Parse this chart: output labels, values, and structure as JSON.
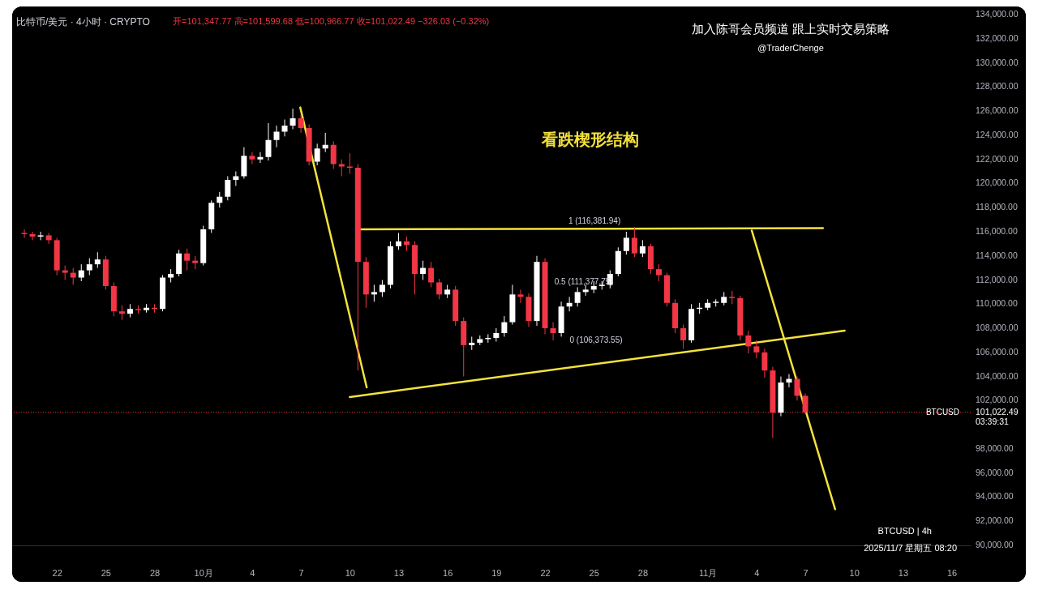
{
  "chart_data": {
    "type": "candlestick",
    "title": "比特币/美元 · 4小时 · CRYPTO",
    "subtitle": "开=101,347.77 高=101,599.68 低=100,966.77 收=101,022.49 −326.03 (−0.32%)",
    "x": [
      "2025-09-20T00:00",
      "2025-09-20T12:00",
      "2025-09-21T00:00",
      "2025-09-21T12:00",
      "2025-09-22T00:00",
      "2025-09-22T12:00",
      "2025-09-23T00:00",
      "2025-09-23T12:00",
      "2025-09-24T00:00",
      "2025-09-24T12:00",
      "2025-09-25T00:00",
      "2025-09-25T12:00",
      "2025-09-26T00:00",
      "2025-09-26T12:00",
      "2025-09-27T00:00",
      "2025-09-27T12:00",
      "2025-09-28T00:00",
      "2025-09-28T12:00",
      "2025-09-29T00:00",
      "2025-09-29T12:00",
      "2025-09-30T00:00",
      "2025-09-30T12:00",
      "2025-10-01T00:00",
      "2025-10-01T12:00",
      "2025-10-02T00:00",
      "2025-10-02T12:00",
      "2025-10-03T00:00",
      "2025-10-03T12:00",
      "2025-10-04T00:00",
      "2025-10-04T12:00",
      "2025-10-05T00:00",
      "2025-10-05T12:00",
      "2025-10-06T00:00",
      "2025-10-06T12:00",
      "2025-10-07T00:00",
      "2025-10-07T12:00",
      "2025-10-08T00:00",
      "2025-10-08T12:00",
      "2025-10-09T00:00",
      "2025-10-09T12:00",
      "2025-10-10T00:00",
      "2025-10-10T12:00",
      "2025-10-11T00:00",
      "2025-10-11T12:00",
      "2025-10-12T00:00",
      "2025-10-12T12:00",
      "2025-10-13T00:00",
      "2025-10-13T12:00",
      "2025-10-14T00:00",
      "2025-10-14T12:00",
      "2025-10-15T00:00",
      "2025-10-15T12:00",
      "2025-10-16T00:00",
      "2025-10-16T12:00",
      "2025-10-17T00:00",
      "2025-10-17T12:00",
      "2025-10-18T00:00",
      "2025-10-18T12:00",
      "2025-10-19T00:00",
      "2025-10-19T12:00",
      "2025-10-20T00:00",
      "2025-10-20T12:00",
      "2025-10-21T00:00",
      "2025-10-21T12:00",
      "2025-10-22T00:00",
      "2025-10-22T12:00",
      "2025-10-23T00:00",
      "2025-10-23T12:00",
      "2025-10-24T00:00",
      "2025-10-24T12:00",
      "2025-10-25T00:00",
      "2025-10-25T12:00",
      "2025-10-26T00:00",
      "2025-10-26T12:00",
      "2025-10-27T00:00",
      "2025-10-27T12:00",
      "2025-10-28T00:00",
      "2025-10-28T12:00",
      "2025-10-29T00:00",
      "2025-10-29T12:00",
      "2025-10-30T00:00",
      "2025-10-30T12:00",
      "2025-10-31T00:00",
      "2025-10-31T12:00",
      "2025-11-01T00:00",
      "2025-11-01T12:00",
      "2025-11-02T00:00",
      "2025-11-02T12:00",
      "2025-11-03T00:00",
      "2025-11-03T12:00",
      "2025-11-04T00:00",
      "2025-11-04T12:00",
      "2025-11-05T00:00",
      "2025-11-05T12:00",
      "2025-11-06T00:00",
      "2025-11-06T12:00",
      "2025-11-07T00:00"
    ],
    "ohlc": [
      [
        115900,
        116200,
        115500,
        115800
      ],
      [
        115800,
        116000,
        115300,
        115600
      ],
      [
        115600,
        116000,
        115300,
        115700
      ],
      [
        115700,
        115900,
        115000,
        115300
      ],
      [
        115300,
        115500,
        112400,
        112800
      ],
      [
        112800,
        113200,
        112000,
        112600
      ],
      [
        112600,
        113000,
        111600,
        112200
      ],
      [
        112200,
        113300,
        111900,
        112800
      ],
      [
        112800,
        113800,
        112400,
        113300
      ],
      [
        113300,
        114300,
        113000,
        113700
      ],
      [
        113700,
        114000,
        111200,
        111500
      ],
      [
        111500,
        111800,
        109000,
        109400
      ],
      [
        109400,
        109900,
        108700,
        109200
      ],
      [
        109200,
        110000,
        108900,
        109600
      ],
      [
        109600,
        109900,
        109200,
        109500
      ],
      [
        109500,
        110000,
        109300,
        109700
      ],
      [
        109700,
        110000,
        109300,
        109600
      ],
      [
        109600,
        112400,
        109400,
        112200
      ],
      [
        112200,
        112900,
        111800,
        112500
      ],
      [
        112500,
        114500,
        112300,
        114200
      ],
      [
        114200,
        114600,
        112800,
        113600
      ],
      [
        113600,
        114000,
        112900,
        113400
      ],
      [
        113400,
        116500,
        113200,
        116200
      ],
      [
        116200,
        118600,
        115900,
        118400
      ],
      [
        118400,
        119300,
        118000,
        118900
      ],
      [
        118900,
        120600,
        118600,
        120300
      ],
      [
        120300,
        121000,
        119800,
        120600
      ],
      [
        120600,
        123000,
        120400,
        122300
      ],
      [
        122300,
        122600,
        121600,
        122000
      ],
      [
        122000,
        122600,
        121700,
        122200
      ],
      [
        122200,
        125000,
        121900,
        123600
      ],
      [
        123600,
        124800,
        123000,
        124300
      ],
      [
        124300,
        125300,
        123900,
        124800
      ],
      [
        124800,
        126200,
        124500,
        125400
      ],
      [
        125400,
        125700,
        124200,
        124600
      ],
      [
        124600,
        124900,
        121500,
        121800
      ],
      [
        121800,
        123300,
        121500,
        122900
      ],
      [
        122900,
        124200,
        122600,
        123200
      ],
      [
        123200,
        123500,
        121200,
        121600
      ],
      [
        121600,
        122000,
        120600,
        121400
      ],
      [
        121400,
        122500,
        120800,
        121300
      ],
      [
        121300,
        121600,
        104500,
        113500
      ],
      [
        113500,
        113900,
        109700,
        110800
      ],
      [
        110800,
        111600,
        110200,
        111000
      ],
      [
        111000,
        112000,
        110600,
        111600
      ],
      [
        111600,
        115200,
        111300,
        114800
      ],
      [
        114800,
        115900,
        114500,
        115200
      ],
      [
        115200,
        115600,
        114400,
        114900
      ],
      [
        114900,
        115200,
        110800,
        112500
      ],
      [
        112500,
        113600,
        112000,
        113000
      ],
      [
        113000,
        113500,
        111400,
        111800
      ],
      [
        111800,
        112100,
        110400,
        110800
      ],
      [
        110800,
        111600,
        110500,
        111200
      ],
      [
        111200,
        111500,
        108200,
        108600
      ],
      [
        108600,
        108900,
        104000,
        106600
      ],
      [
        106600,
        107300,
        106200,
        106800
      ],
      [
        106800,
        107400,
        106600,
        107100
      ],
      [
        107100,
        107500,
        106800,
        107200
      ],
      [
        107200,
        108000,
        106900,
        107600
      ],
      [
        107600,
        109000,
        107300,
        108500
      ],
      [
        108500,
        111600,
        108300,
        110800
      ],
      [
        110800,
        111200,
        110100,
        110600
      ],
      [
        110600,
        110900,
        108100,
        108600
      ],
      [
        108600,
        114000,
        108200,
        113500
      ],
      [
        113500,
        113800,
        107500,
        108000
      ],
      [
        108000,
        108500,
        107000,
        107600
      ],
      [
        107600,
        110200,
        107300,
        109800
      ],
      [
        109800,
        110600,
        109400,
        110100
      ],
      [
        110100,
        111400,
        109800,
        111000
      ],
      [
        111000,
        111600,
        110700,
        111200
      ],
      [
        111200,
        111900,
        110900,
        111500
      ],
      [
        111500,
        111900,
        111200,
        111600
      ],
      [
        111600,
        112800,
        111300,
        112500
      ],
      [
        112500,
        114700,
        112300,
        114400
      ],
      [
        114400,
        116000,
        114100,
        115500
      ],
      [
        115500,
        116400,
        113900,
        114200
      ],
      [
        114200,
        115300,
        113900,
        114800
      ],
      [
        114800,
        115000,
        112500,
        112900
      ],
      [
        112900,
        113300,
        111900,
        112400
      ],
      [
        112400,
        112600,
        109800,
        110100
      ],
      [
        110100,
        110400,
        107600,
        108000
      ],
      [
        108000,
        108300,
        106300,
        107000
      ],
      [
        107000,
        110000,
        106800,
        109600
      ],
      [
        109600,
        110100,
        109200,
        109700
      ],
      [
        109700,
        110400,
        109500,
        110100
      ],
      [
        110100,
        110400,
        109800,
        110200
      ],
      [
        110100,
        111000,
        109900,
        110600
      ],
      [
        110600,
        111100,
        110000,
        110500
      ],
      [
        110500,
        110700,
        107000,
        107400
      ],
      [
        107400,
        107800,
        105900,
        106500
      ],
      [
        106500,
        107000,
        105500,
        106000
      ],
      [
        106000,
        106300,
        103900,
        104500
      ],
      [
        104500,
        104800,
        98900,
        101000
      ],
      [
        101000,
        104000,
        100700,
        103500
      ],
      [
        103500,
        104200,
        103100,
        103800
      ],
      [
        103800,
        104000,
        102000,
        102400
      ],
      [
        102400,
        102600,
        100900,
        101022.49
      ]
    ],
    "colors": [
      "#f23645",
      "#f23645",
      "#ffffff",
      "#f23645",
      "#f23645",
      "#f23645",
      "#f23645",
      "#ffffff",
      "#ffffff",
      "#ffffff",
      "#f23645",
      "#f23645",
      "#f23645",
      "#ffffff",
      "#f23645",
      "#ffffff",
      "#f23645",
      "#ffffff",
      "#ffffff",
      "#ffffff",
      "#f23645",
      "#f23645",
      "#ffffff",
      "#ffffff",
      "#ffffff",
      "#ffffff",
      "#ffffff",
      "#ffffff",
      "#f23645",
      "#ffffff",
      "#ffffff",
      "#ffffff",
      "#ffffff",
      "#ffffff",
      "#f23645",
      "#f23645",
      "#ffffff",
      "#ffffff",
      "#f23645",
      "#f23645",
      "#f23645",
      "#f23645",
      "#f23645",
      "#ffffff",
      "#ffffff",
      "#ffffff",
      "#ffffff",
      "#f23645",
      "#f23645",
      "#ffffff",
      "#f23645",
      "#f23645",
      "#ffffff",
      "#f23645",
      "#f23645",
      "#ffffff",
      "#ffffff",
      "#ffffff",
      "#ffffff",
      "#ffffff",
      "#ffffff",
      "#f23645",
      "#f23645",
      "#ffffff",
      "#f23645",
      "#f23645",
      "#ffffff",
      "#ffffff",
      "#ffffff",
      "#ffffff",
      "#ffffff",
      "#ffffff",
      "#ffffff",
      "#ffffff",
      "#ffffff",
      "#f23645",
      "#ffffff",
      "#f23645",
      "#f23645",
      "#f23645",
      "#f23645",
      "#f23645",
      "#ffffff",
      "#ffffff",
      "#ffffff",
      "#ffffff",
      "#ffffff",
      "#f23645",
      "#f23645",
      "#f23645",
      "#f23645",
      "#f23645",
      "#f23645",
      "#ffffff",
      "#ffffff",
      "#f23645",
      "#f23645"
    ],
    "series": [
      {
        "type": "line",
        "color": "#f5e23c",
        "x": [
          "2025-10-10T14:00",
          "2025-11-08T02:00"
        ],
        "values": [
          116200,
          116300
        ]
      },
      {
        "type": "line",
        "color": "#f5e23c",
        "x": [
          "2025-10-10T00:00",
          "2025-11-09T10:00"
        ],
        "values": [
          102300,
          107800
        ]
      },
      {
        "type": "line",
        "color": "#f5e23c",
        "x": [
          "2025-10-06T23:00",
          "2025-10-11T01:00"
        ],
        "values": [
          126300,
          103100
        ]
      },
      {
        "type": "line",
        "color": "#f5e23c",
        "x": [
          "2025-11-03T17:00",
          "2025-11-08T20:00"
        ],
        "values": [
          116100,
          93000
        ]
      }
    ],
    "ref_lines": [
      {
        "axis": "y",
        "value": 101022.49,
        "label": "BTCUSD",
        "color": "#f23645",
        "line_style": "dotted"
      }
    ],
    "annotations": [
      "加入陈哥会员频道 跟上实时交易策略",
      "@TraderChenge",
      "BTCUSD | 4h",
      "2025/11/7 星期五 08:20",
      "101,022.49",
      "03:39:31",
      "看跌楔形结构",
      "0 (106,373.55)",
      {
        "text": "1 (116,381.94)",
        "x": "2025-10-25T01:00",
        "y": 116381.94
      },
      {
        "text": "0.5 (111,377.75)",
        "x": "2025-10-24T09:00",
        "y": 111377.75
      }
    ],
    "xlim": [
      "2025-09-19T12:00",
      "2025-11-16T22:00"
    ],
    "xticks": [
      {
        "value": "2025-09-22",
        "label": "22"
      },
      {
        "value": "2025-09-25",
        "label": "25"
      },
      {
        "value": "2025-09-28",
        "label": "28"
      },
      {
        "value": "2025-10-01",
        "label": "10月"
      },
      {
        "value": "2025-10-04",
        "label": "4"
      },
      {
        "value": "2025-10-07",
        "label": "7"
      },
      {
        "value": "2025-10-10",
        "label": "10"
      },
      {
        "value": "2025-10-13",
        "label": "13"
      },
      {
        "value": "2025-10-16",
        "label": "16"
      },
      {
        "value": "2025-10-19",
        "label": "19"
      },
      {
        "value": "2025-10-22",
        "label": "22"
      },
      {
        "value": "2025-10-25",
        "label": "25"
      },
      {
        "value": "2025-10-28",
        "label": "28"
      },
      {
        "value": "2025-11-01",
        "label": "11月"
      },
      {
        "value": "2025-11-04",
        "label": "4"
      },
      {
        "value": "2025-11-07",
        "label": "7"
      },
      {
        "value": "2025-11-10",
        "label": "10"
      },
      {
        "value": "2025-11-13",
        "label": "13"
      },
      {
        "value": "2025-11-16",
        "label": "16"
      }
    ],
    "ylim": [
      90000,
      134000
    ],
    "yticks": [
      {
        "value": 90000,
        "label": "90,000.00"
      },
      {
        "value": 92000,
        "label": "92,000.00"
      },
      {
        "value": 94000,
        "label": "94,000.00"
      },
      {
        "value": 96000,
        "label": "96,000.00"
      },
      {
        "value": 98000,
        "label": "98,000.00"
      },
      {
        "value": 102000,
        "label": "102,000.00"
      },
      {
        "value": 104000,
        "label": "104,000.00"
      },
      {
        "value": 106000,
        "label": "106,000.00"
      },
      {
        "value": 108000,
        "label": "108,000.00"
      },
      {
        "value": 110000,
        "label": "110,000.00"
      },
      {
        "value": 112000,
        "label": "112,000.00"
      },
      {
        "value": 114000,
        "label": "114,000.00"
      },
      {
        "value": 116000,
        "label": "116,000.00"
      },
      {
        "value": 118000,
        "label": "118,000.00"
      },
      {
        "value": 120000,
        "label": "120,000.00"
      },
      {
        "value": 122000,
        "label": "122,000.00"
      },
      {
        "value": 124000,
        "label": "124,000.00"
      },
      {
        "value": 126000,
        "label": "126,000.00"
      },
      {
        "value": 128000,
        "label": "128,000.00"
      },
      {
        "value": 130000,
        "label": "130,000.00"
      },
      {
        "value": 132000,
        "label": "132,000.00"
      },
      {
        "value": 134000,
        "label": "134,000.00"
      }
    ]
  }
}
